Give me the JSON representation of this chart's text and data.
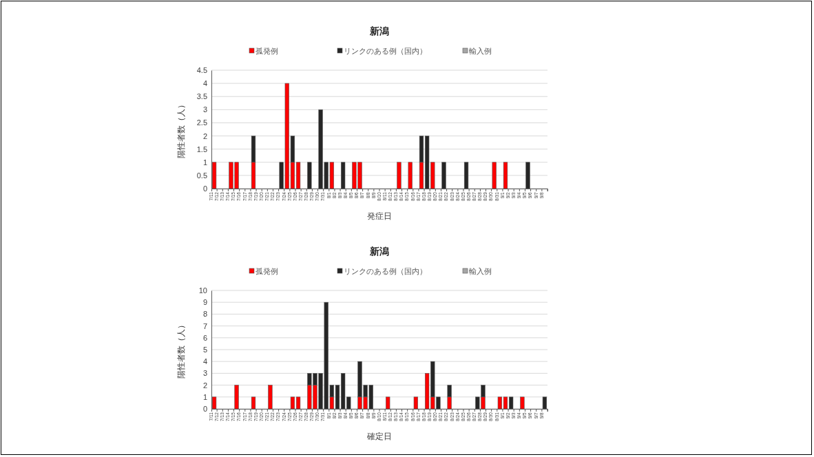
{
  "chart_data": [
    {
      "type": "bar",
      "title": "新潟",
      "xlabel": "発症日",
      "ylabel": "陽性者数（人）",
      "stacked": true,
      "legend": "top",
      "grid": "y",
      "ylim": [
        0,
        4.5
      ],
      "yticks": [
        0,
        0.5,
        1,
        1.5,
        2,
        2.5,
        3,
        3.5,
        4,
        4.5
      ],
      "categories": [
        "7/11",
        "7/12",
        "7/13",
        "7/14",
        "7/15",
        "7/16",
        "7/17",
        "7/18",
        "7/19",
        "7/20",
        "7/21",
        "7/22",
        "7/23",
        "7/24",
        "7/25",
        "7/26",
        "7/27",
        "7/28",
        "7/29",
        "7/30",
        "7/31",
        "8/1",
        "8/2",
        "8/3",
        "8/4",
        "8/5",
        "8/6",
        "8/7",
        "8/8",
        "8/9",
        "8/10",
        "8/11",
        "8/12",
        "8/13",
        "8/14",
        "8/15",
        "8/16",
        "8/17",
        "8/18",
        "8/19",
        "8/20",
        "8/21",
        "8/22",
        "8/23",
        "8/24",
        "8/25",
        "8/26",
        "8/27",
        "8/28",
        "8/29",
        "8/30",
        "8/31",
        "9/1",
        "9/2",
        "9/3",
        "9/4",
        "9/5",
        "9/6",
        "9/7",
        "9/8"
      ],
      "series": [
        {
          "name": "孤発例",
          "color": "#ff0000",
          "values": [
            1,
            0,
            0,
            1,
            1,
            0,
            0,
            1,
            0,
            0,
            0,
            0,
            0,
            4,
            1,
            1,
            0,
            0,
            0,
            0,
            0,
            1,
            0,
            0,
            0,
            1,
            1,
            0,
            0,
            0,
            0,
            0,
            0,
            1,
            0,
            1,
            0,
            1,
            0,
            1,
            0,
            0,
            0,
            0,
            0,
            0,
            0,
            0,
            0,
            0,
            1,
            0,
            1,
            0,
            0,
            0,
            0,
            0,
            0,
            0
          ]
        },
        {
          "name": "リンクのある例（国内）",
          "color": "#262626",
          "values": [
            0,
            0,
            0,
            0,
            0,
            0,
            0,
            1,
            0,
            0,
            0,
            0,
            1,
            0,
            1,
            0,
            0,
            1,
            0,
            3,
            1,
            0,
            0,
            1,
            0,
            0,
            0,
            0,
            0,
            0,
            0,
            0,
            0,
            0,
            0,
            0,
            0,
            1,
            2,
            0,
            0,
            1,
            0,
            0,
            0,
            1,
            0,
            0,
            0,
            0,
            0,
            0,
            0,
            0,
            0,
            0,
            1,
            0,
            0,
            0
          ]
        },
        {
          "name": "輸入例",
          "color": "#a6a6a6",
          "values": [
            0,
            0,
            0,
            0,
            0,
            0,
            0,
            0,
            0,
            0,
            0,
            0,
            0,
            0,
            0,
            0,
            0,
            0,
            0,
            0,
            0,
            0,
            0,
            0,
            0,
            0,
            0,
            0,
            0,
            0,
            0,
            0,
            0,
            0,
            0,
            0,
            0,
            0,
            0,
            0,
            0,
            0,
            0,
            0,
            0,
            0,
            0,
            0,
            0,
            0,
            0,
            0,
            0,
            0,
            0,
            0,
            0,
            0,
            0,
            0
          ]
        }
      ]
    },
    {
      "type": "bar",
      "title": "新潟",
      "xlabel": "確定日",
      "ylabel": "陽性者数（人）",
      "stacked": true,
      "legend": "top",
      "grid": "y",
      "ylim": [
        0,
        10
      ],
      "yticks": [
        0,
        1,
        2,
        3,
        4,
        5,
        6,
        7,
        8,
        9,
        10
      ],
      "categories": [
        "7/11",
        "7/12",
        "7/13",
        "7/14",
        "7/15",
        "7/16",
        "7/17",
        "7/18",
        "7/19",
        "7/20",
        "7/21",
        "7/22",
        "7/23",
        "7/24",
        "7/25",
        "7/26",
        "7/27",
        "7/28",
        "7/29",
        "7/30",
        "7/31",
        "8/1",
        "8/2",
        "8/3",
        "8/4",
        "8/5",
        "8/6",
        "8/7",
        "8/8",
        "8/9",
        "8/10",
        "8/11",
        "8/12",
        "8/13",
        "8/14",
        "8/15",
        "8/16",
        "8/17",
        "8/18",
        "8/19",
        "8/20",
        "8/21",
        "8/22",
        "8/23",
        "8/24",
        "8/25",
        "8/26",
        "8/27",
        "8/28",
        "8/29",
        "8/30",
        "8/31",
        "9/1",
        "9/2",
        "9/3",
        "9/4",
        "9/5",
        "9/6",
        "9/7",
        "9/8"
      ],
      "series": [
        {
          "name": "孤発例",
          "color": "#ff0000",
          "values": [
            1,
            0,
            0,
            0,
            2,
            0,
            0,
            1,
            0,
            0,
            2,
            0,
            0,
            0,
            1,
            1,
            0,
            2,
            2,
            0,
            0,
            1,
            0,
            0,
            0,
            0,
            1,
            1,
            0,
            0,
            0,
            1,
            0,
            0,
            0,
            0,
            1,
            0,
            3,
            1,
            0,
            0,
            1,
            0,
            0,
            0,
            0,
            0,
            1,
            0,
            0,
            1,
            1,
            0,
            0,
            1,
            0,
            0,
            0,
            0
          ]
        },
        {
          "name": "リンクのある例（国内）",
          "color": "#262626",
          "values": [
            0,
            0,
            0,
            0,
            0,
            0,
            0,
            0,
            0,
            0,
            0,
            0,
            0,
            0,
            0,
            0,
            0,
            1,
            1,
            3,
            9,
            1,
            2,
            3,
            1,
            0,
            3,
            1,
            2,
            0,
            0,
            0,
            0,
            0,
            0,
            0,
            0,
            0,
            0,
            3,
            1,
            0,
            1,
            0,
            0,
            0,
            0,
            1,
            1,
            0,
            0,
            0,
            0,
            1,
            0,
            0,
            0,
            0,
            0,
            1
          ]
        },
        {
          "name": "輸入例",
          "color": "#a6a6a6",
          "values": [
            0,
            0,
            0,
            0,
            0,
            0,
            0,
            0,
            0,
            0,
            0,
            0,
            0,
            0,
            0,
            0,
            0,
            0,
            0,
            0,
            0,
            0,
            0,
            0,
            0,
            0,
            0,
            0,
            0,
            0,
            0,
            0,
            0,
            0,
            0,
            0,
            0,
            0,
            0,
            0,
            0,
            0,
            0,
            0,
            0,
            0,
            0,
            0,
            0,
            0,
            0,
            0,
            0,
            0,
            0,
            0,
            0,
            0,
            0,
            0
          ]
        }
      ]
    }
  ]
}
